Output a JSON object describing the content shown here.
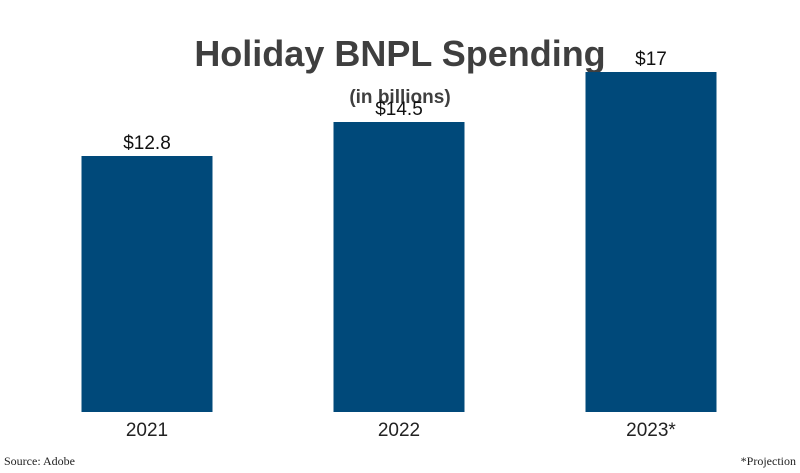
{
  "chart_data": {
    "type": "bar",
    "title": "Holiday BNPL Spending",
    "subtitle": "(in billions)",
    "categories": [
      "2021",
      "2022",
      "2023*"
    ],
    "values": [
      12.8,
      14.5,
      17
    ],
    "value_labels": [
      "$12.8",
      "$14.5",
      "$17"
    ],
    "xlabel": "",
    "ylabel": "",
    "ylim": [
      0,
      20.6
    ],
    "grid": false,
    "legend": "none",
    "bar_color": "#00497a"
  },
  "footer": {
    "source": "Source: Adobe",
    "note": "*Projection"
  }
}
